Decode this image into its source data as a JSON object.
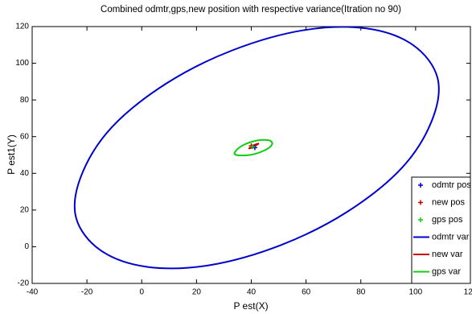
{
  "chart_data": {
    "type": "line",
    "title": "Combined odmtr,gps,new position with respective variance(Itration no 90)",
    "xlabel": "P est(X)",
    "ylabel": "P est1(Y)",
    "xlim": [
      -40,
      120
    ],
    "ylim": [
      -20,
      120
    ],
    "xticks": [
      -40,
      -20,
      0,
      20,
      40,
      60,
      80,
      100,
      120
    ],
    "yticks": [
      -20,
      0,
      20,
      40,
      60,
      80,
      100,
      120
    ],
    "legend": "lower right",
    "series": [
      {
        "name": "odmtr pos",
        "color": "#0000cc",
        "kind": "marker",
        "x": [
          41.3
        ],
        "y": [
          54
        ]
      },
      {
        "name": "new pos",
        "color": "#cc0000",
        "kind": "marker",
        "x": [
          40
        ],
        "y": [
          55
        ]
      },
      {
        "name": "gps pos",
        "color": "#11cc11",
        "kind": "marker",
        "x": [
          40.5
        ],
        "y": [
          54.5
        ]
      },
      {
        "name": "odmtr var",
        "color": "#0000cc",
        "kind": "line",
        "x": [
          106,
          108,
          99,
          82,
          59,
          33,
          9,
          -11,
          -22,
          -24,
          -15,
          2,
          25,
          51,
          75,
          95,
          106
        ],
        "y": [
          69,
          92,
          110,
          119,
          118,
          107,
          89,
          65,
          39,
          16,
          -2,
          -11,
          -10,
          1,
          19,
          43,
          69
        ]
      },
      {
        "name": "new var",
        "color": "#cc0000",
        "kind": "line",
        "x": [
          42.6,
          40.9,
          39.2,
          40.9,
          42.6
        ],
        "y": [
          56.2,
          55.3,
          53.6,
          54.5,
          56.2
        ]
      },
      {
        "name": "gps var",
        "color": "#11cc11",
        "kind": "line",
        "x": [
          47.5,
          46.7,
          42.5,
          37.5,
          34.5,
          34.3,
          39.5,
          44.5,
          47.5
        ],
        "y": [
          55.5,
          57.9,
          58,
          55.7,
          52.5,
          50.1,
          50,
          52.3,
          55.5
        ]
      }
    ]
  }
}
